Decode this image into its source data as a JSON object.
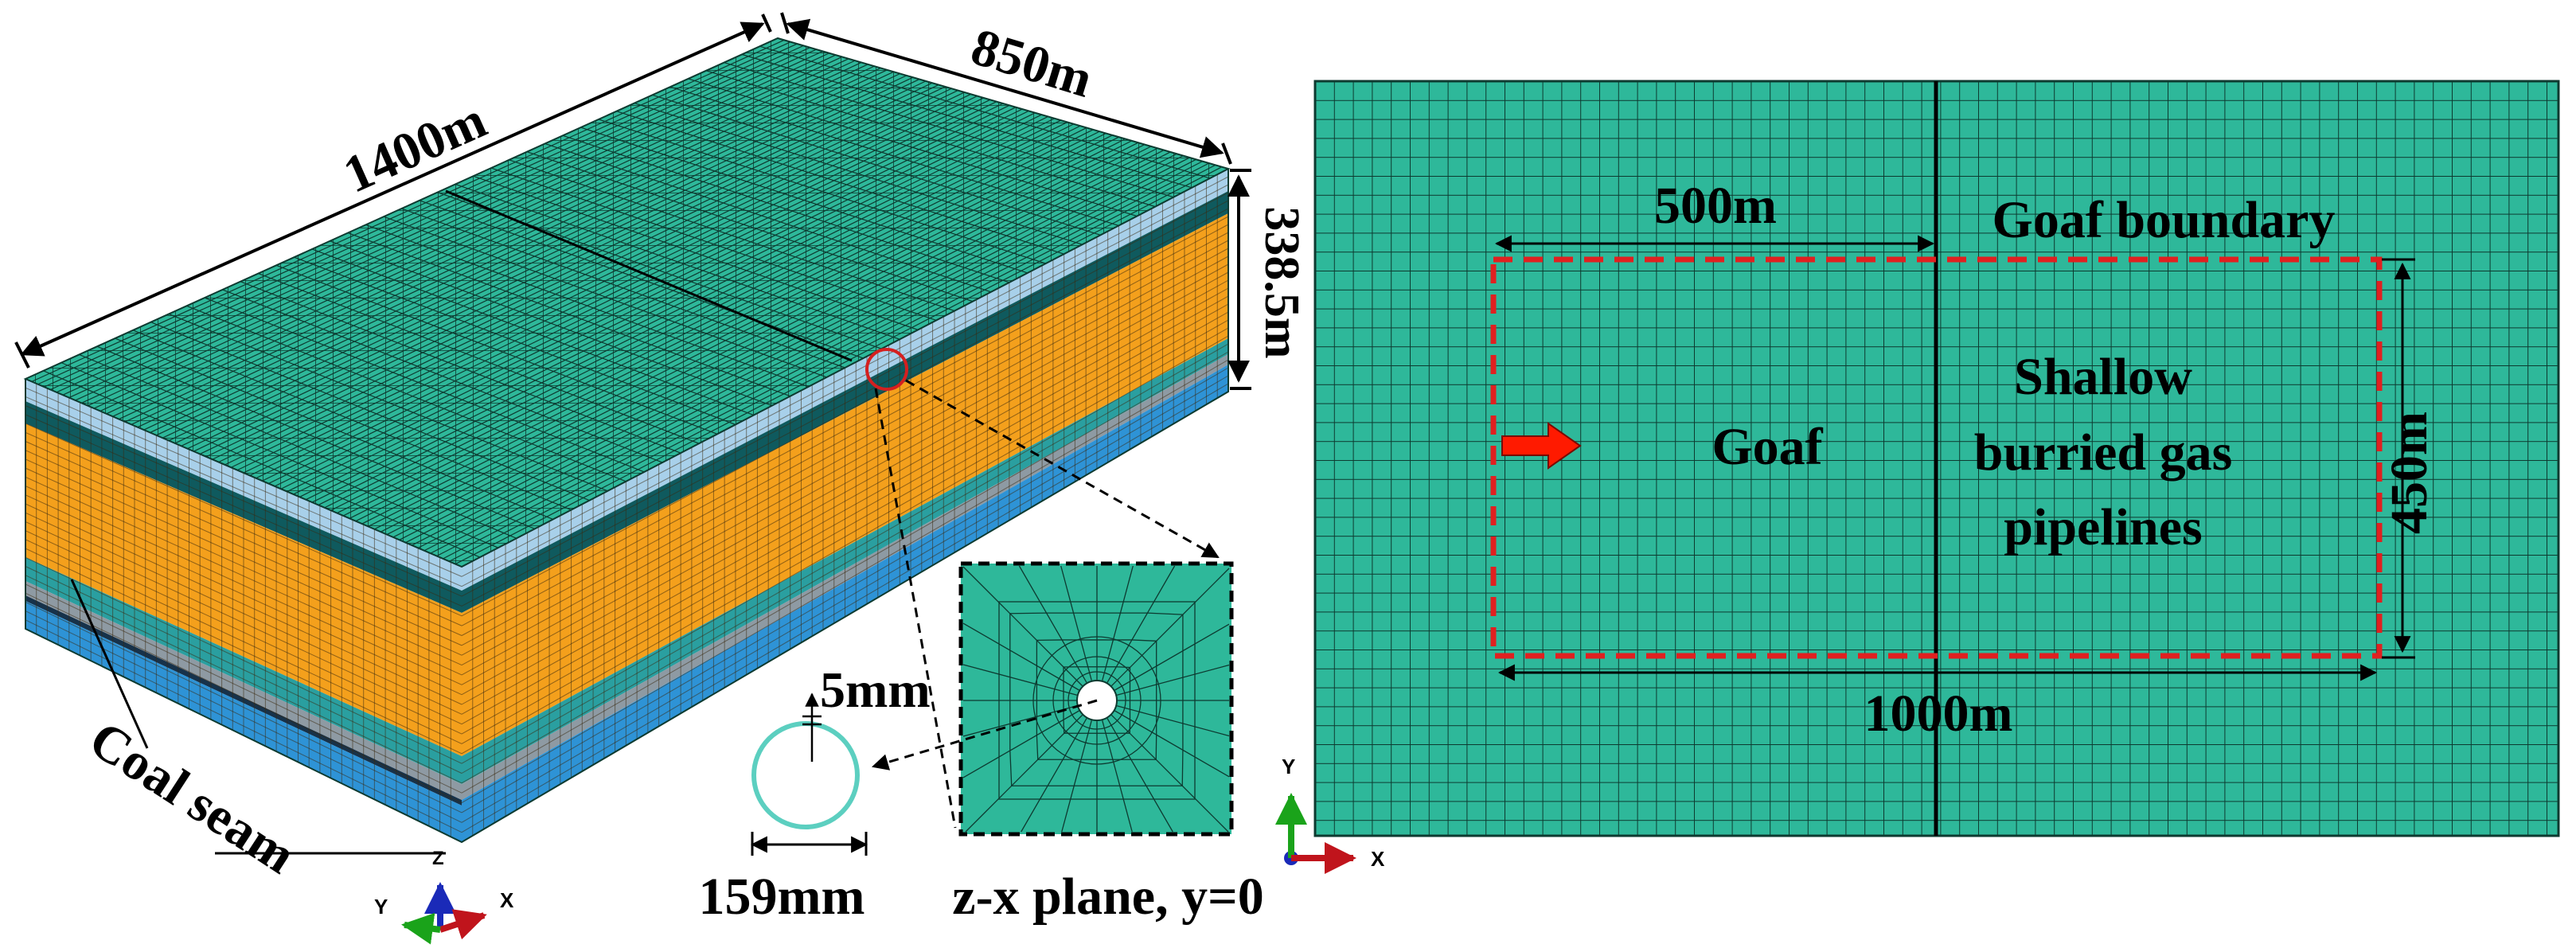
{
  "colors": {
    "mesh_teal": "#2eb89a",
    "mesh_line": "#0d3a30",
    "strata_orange": "#f4a01c",
    "strata_light_blue": "#a8d0ea",
    "strata_dark_teal": "#0f5a5e",
    "strata_blue": "#2e93d6",
    "strata_gray": "#8e9aa3",
    "boundary_red": "#e02020",
    "arrow_red": "#ff1a00",
    "axis_x": "#c0141c",
    "axis_y": "#1aa31a",
    "axis_z": "#1a2ab8",
    "pipe_outline": "#5ccfc0"
  },
  "model3d": {
    "length_label": "1400m",
    "width_label": "850m",
    "height_label": "338.5m",
    "coal_seam_label": "Coal seam",
    "pipe_thickness_label": "5mm",
    "pipe_diameter_label": "159mm",
    "plane_label": "z-x plane, y=0",
    "axes": {
      "x": "X",
      "y": "Y",
      "z": "Z"
    }
  },
  "plan": {
    "dist_500_label": "500m",
    "boundary_label": "Goaf boundary",
    "goaf_label": "Goaf",
    "pipelines_line1": "Shallow",
    "pipelines_line2": "burried gas",
    "pipelines_line3": "pipelines",
    "dist_450_label": "450m",
    "dist_1000_label": "1000m",
    "axes": {
      "x": "X",
      "y": "Y"
    }
  }
}
